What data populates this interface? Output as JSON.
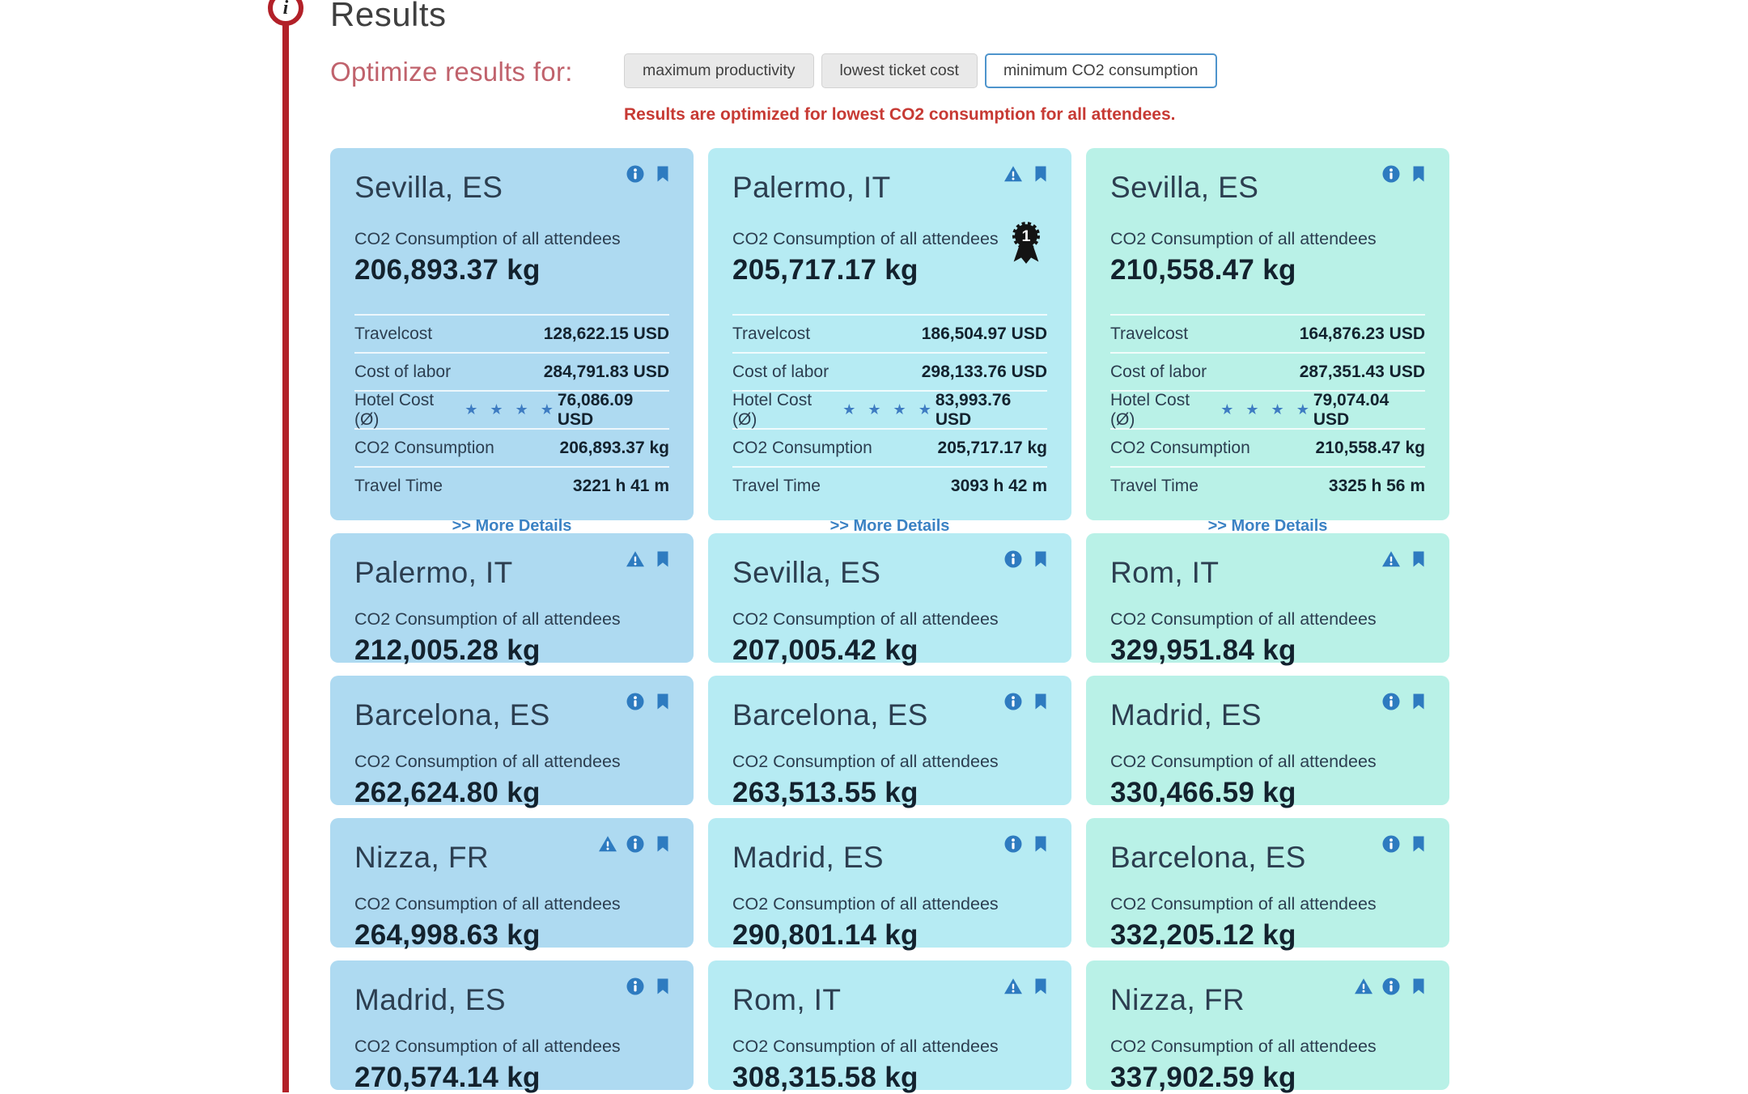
{
  "page": {
    "title": "Results",
    "optimize_label": "Optimize results for:",
    "optimize_options": [
      {
        "label": "maximum productivity",
        "selected": false
      },
      {
        "label": "lowest ticket cost",
        "selected": false
      },
      {
        "label": "minimum CO2 consumption",
        "selected": true
      }
    ],
    "optimize_message": "Results are optimized for lowest CO2 consumption for all attendees."
  },
  "labels": {
    "co2_caption": "CO2 Consumption of all attendees",
    "more_details": ">> More Details"
  },
  "colors": {
    "timeline_red": "#b22028",
    "message_red": "#c73a34",
    "optimize_label_rose": "#c0626c",
    "icon_blue": "#2e7bc0",
    "selected_button_border": "#4e94cc",
    "card_blue": "#aedaf1",
    "card_cyan": "#b6ebf3",
    "card_mint": "#b9f1e7"
  },
  "cards": [
    {
      "city": "Sevilla, ES",
      "theme": "blue",
      "icons": [
        "info",
        "bookmark"
      ],
      "medal": false,
      "co2": "206,893.37 kg",
      "details": [
        {
          "label": "Travelcost",
          "value": "128,622.15 USD"
        },
        {
          "label": "Cost of labor",
          "value": "284,791.83 USD"
        },
        {
          "label": "Hotel Cost (Ø)",
          "stars": 4,
          "value": "76,086.09 USD"
        },
        {
          "label": "CO2 Consumption",
          "value": "206,893.37 kg"
        },
        {
          "label": "Travel Time",
          "value": "3221 h 41 m"
        }
      ]
    },
    {
      "city": "Palermo, IT",
      "theme": "cyan",
      "icons": [
        "warning",
        "bookmark"
      ],
      "medal": true,
      "co2": "205,717.17 kg",
      "details": [
        {
          "label": "Travelcost",
          "value": "186,504.97 USD"
        },
        {
          "label": "Cost of labor",
          "value": "298,133.76 USD"
        },
        {
          "label": "Hotel Cost (Ø)",
          "stars": 4,
          "value": "83,993.76 USD"
        },
        {
          "label": "CO2 Consumption",
          "value": "205,717.17 kg"
        },
        {
          "label": "Travel Time",
          "value": "3093 h 42 m"
        }
      ]
    },
    {
      "city": "Sevilla, ES",
      "theme": "mint",
      "icons": [
        "info",
        "bookmark"
      ],
      "medal": false,
      "co2": "210,558.47 kg",
      "details": [
        {
          "label": "Travelcost",
          "value": "164,876.23 USD"
        },
        {
          "label": "Cost of labor",
          "value": "287,351.43 USD"
        },
        {
          "label": "Hotel Cost (Ø)",
          "stars": 4,
          "value": "79,074.04 USD"
        },
        {
          "label": "CO2 Consumption",
          "value": "210,558.47 kg"
        },
        {
          "label": "Travel Time",
          "value": "3325 h 56 m"
        }
      ]
    },
    {
      "city": "Palermo, IT",
      "theme": "blue",
      "icons": [
        "warning",
        "bookmark"
      ],
      "medal": false,
      "co2": "212,005.28 kg"
    },
    {
      "city": "Sevilla, ES",
      "theme": "cyan",
      "icons": [
        "info",
        "bookmark"
      ],
      "medal": false,
      "co2": "207,005.42 kg"
    },
    {
      "city": "Rom, IT",
      "theme": "mint",
      "icons": [
        "warning",
        "bookmark"
      ],
      "medal": false,
      "co2": "329,951.84 kg"
    },
    {
      "city": "Barcelona, ES",
      "theme": "blue",
      "icons": [
        "info",
        "bookmark"
      ],
      "medal": false,
      "co2": "262,624.80 kg"
    },
    {
      "city": "Barcelona, ES",
      "theme": "cyan",
      "icons": [
        "info",
        "bookmark"
      ],
      "medal": false,
      "co2": "263,513.55 kg"
    },
    {
      "city": "Madrid, ES",
      "theme": "mint",
      "icons": [
        "info",
        "bookmark"
      ],
      "medal": false,
      "co2": "330,466.59 kg"
    },
    {
      "city": "Nizza, FR",
      "theme": "blue",
      "icons": [
        "warning",
        "info",
        "bookmark"
      ],
      "medal": false,
      "co2": "264,998.63 kg"
    },
    {
      "city": "Madrid, ES",
      "theme": "cyan",
      "icons": [
        "info",
        "bookmark"
      ],
      "medal": false,
      "co2": "290,801.14 kg"
    },
    {
      "city": "Barcelona, ES",
      "theme": "mint",
      "icons": [
        "info",
        "bookmark"
      ],
      "medal": false,
      "co2": "332,205.12 kg"
    },
    {
      "city": "Madrid, ES",
      "theme": "blue",
      "icons": [
        "info",
        "bookmark"
      ],
      "medal": false,
      "co2": "270,574.14 kg"
    },
    {
      "city": "Rom, IT",
      "theme": "cyan",
      "icons": [
        "warning",
        "bookmark"
      ],
      "medal": false,
      "co2": "308,315.58 kg"
    },
    {
      "city": "Nizza, FR",
      "theme": "mint",
      "icons": [
        "warning",
        "info",
        "bookmark"
      ],
      "medal": false,
      "co2": "337,902.59 kg"
    }
  ]
}
